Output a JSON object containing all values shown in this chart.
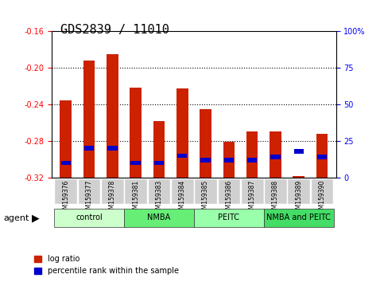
{
  "title": "GDS2839 / 11010",
  "samples": [
    "GSM159376",
    "GSM159377",
    "GSM159378",
    "GSM159381",
    "GSM159383",
    "GSM159384",
    "GSM159385",
    "GSM159386",
    "GSM159387",
    "GSM159388",
    "GSM159389",
    "GSM159390"
  ],
  "log_ratio": [
    -0.236,
    -0.192,
    -0.185,
    -0.222,
    -0.258,
    -0.223,
    -0.245,
    -0.281,
    -0.27,
    -0.27,
    -0.318,
    -0.272
  ],
  "percentile_rank": [
    10,
    20,
    20,
    10,
    10,
    15,
    12,
    12,
    12,
    14,
    18,
    14
  ],
  "ylim_left": [
    -0.32,
    -0.16
  ],
  "ylim_right": [
    0,
    100
  ],
  "yticks_left": [
    -0.32,
    -0.28,
    -0.24,
    -0.2,
    -0.16
  ],
  "yticks_right": [
    0,
    25,
    50,
    75,
    100
  ],
  "yticklabels_left": [
    "-0.32",
    "-0.28",
    "-0.24",
    "-0.20",
    "-0.16"
  ],
  "yticklabels_right": [
    "0",
    "25",
    "50",
    "75",
    "100%"
  ],
  "groups": [
    {
      "label": "control",
      "start": 0,
      "end": 3,
      "color": "#ccffcc"
    },
    {
      "label": "NMBA",
      "start": 3,
      "end": 6,
      "color": "#66ee77"
    },
    {
      "label": "PEITC",
      "start": 6,
      "end": 9,
      "color": "#99ffaa"
    },
    {
      "label": "NMBA and PEITC",
      "start": 9,
      "end": 12,
      "color": "#44dd66"
    }
  ],
  "bar_color_red": "#cc2200",
  "bar_color_blue": "#0000cc",
  "bar_width": 0.5,
  "title_fontsize": 11,
  "tick_fontsize": 7,
  "label_fontsize": 8
}
